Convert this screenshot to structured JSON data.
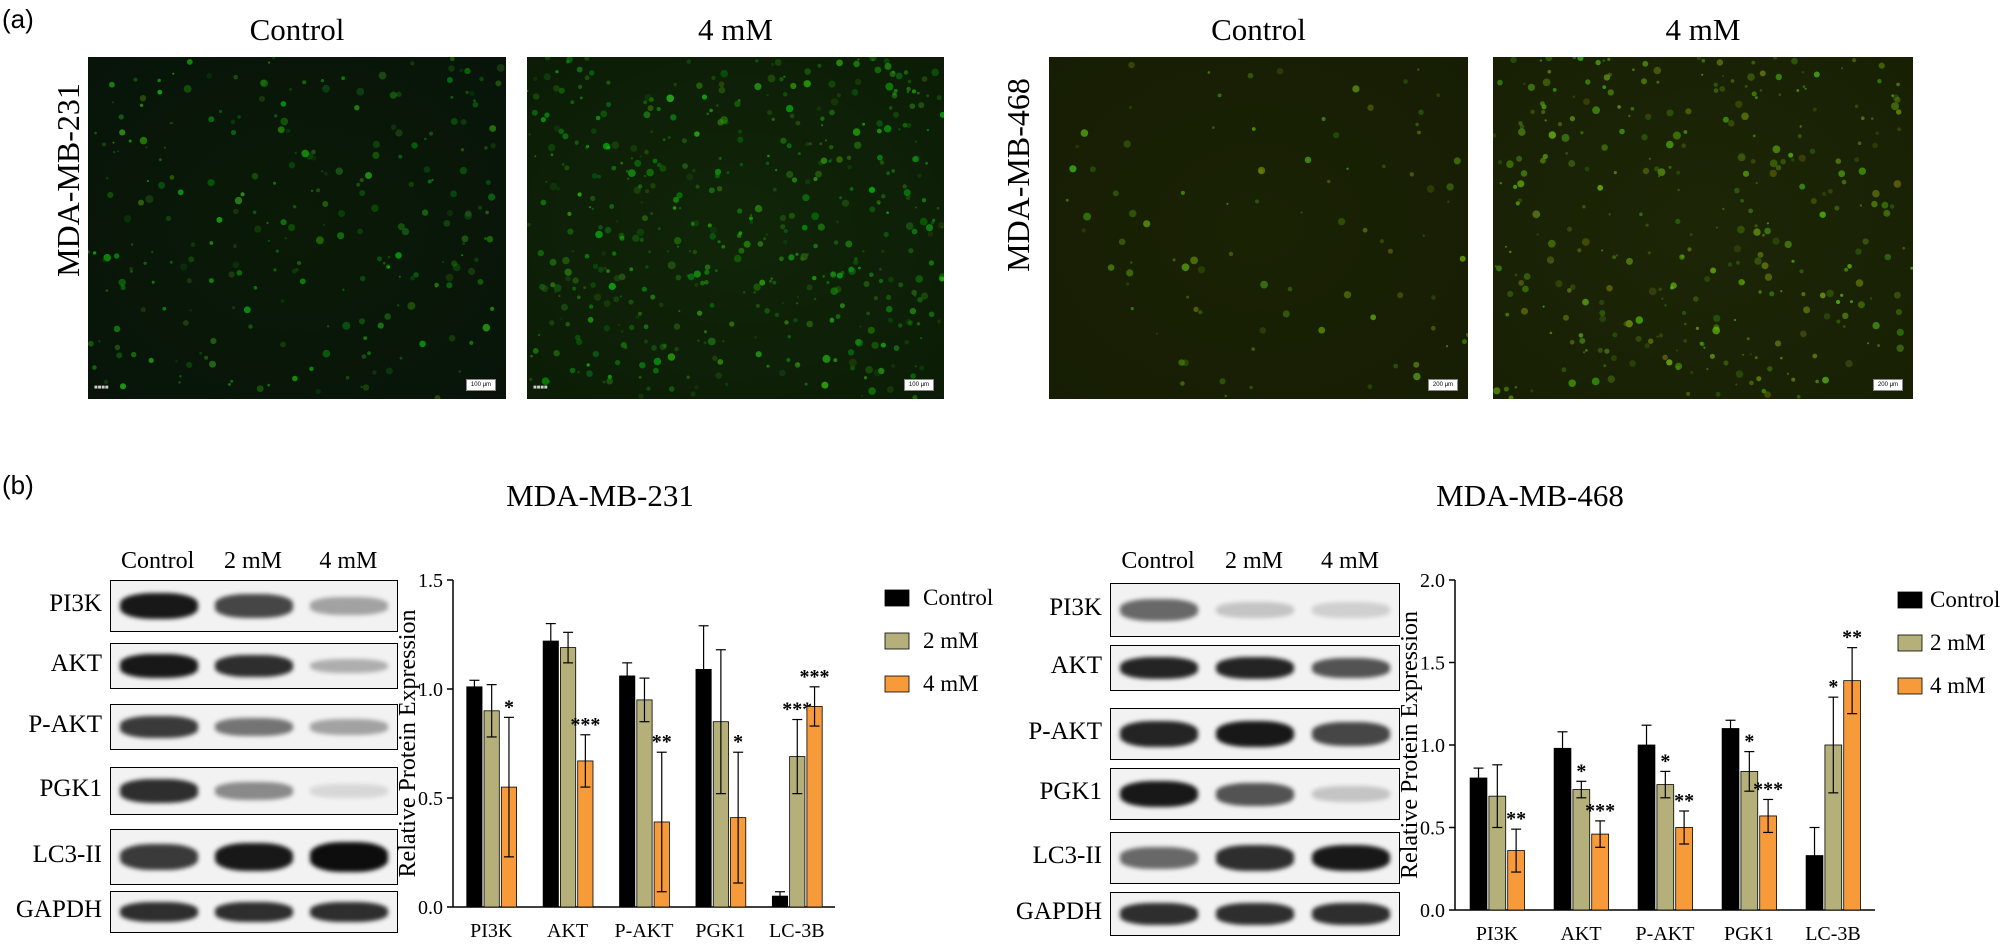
{
  "panel_a": {
    "letter": "(a)",
    "groups": [
      {
        "cell_line": "MDA-MB-231",
        "columns": [
          "Control",
          "4 mM"
        ],
        "scale": "100 μm",
        "tint": [
          [
            "#0a1a06",
            "#08140a"
          ],
          [
            "#102508",
            "#0c1c06"
          ]
        ]
      },
      {
        "cell_line": "MDA-MB-468",
        "columns": [
          "Control",
          "4 mM"
        ],
        "scale": "200 μm",
        "tint": [
          [
            "#1a2204",
            "#161d04"
          ],
          [
            "#1c2606",
            "#182004"
          ]
        ]
      }
    ]
  },
  "panel_b": {
    "letter": "(b)",
    "blots": [
      {
        "title": "MDA-MB-231",
        "lanes": [
          "Control",
          "2 mM",
          "4 mM"
        ],
        "rows": [
          {
            "label": "PI3K",
            "bands": [
              0.95,
              0.75,
              0.35
            ]
          },
          {
            "label": "AKT",
            "bands": [
              0.95,
              0.85,
              0.3
            ]
          },
          {
            "label": "P-AKT",
            "bands": [
              0.8,
              0.55,
              0.35
            ]
          },
          {
            "label": "PGK1",
            "bands": [
              0.85,
              0.45,
              0.12
            ]
          },
          {
            "label": "LC3-II",
            "bands": [
              0.8,
              0.95,
              1.0
            ]
          },
          {
            "label": "GAPDH",
            "bands": [
              0.85,
              0.85,
              0.85
            ]
          }
        ]
      },
      {
        "title": "MDA-MB-468",
        "lanes": [
          "Control",
          "2 mM",
          "4 mM"
        ],
        "rows": [
          {
            "label": "PI3K",
            "bands": [
              0.6,
              0.2,
              0.15
            ]
          },
          {
            "label": "AKT",
            "bands": [
              0.9,
              0.9,
              0.7
            ]
          },
          {
            "label": "P-AKT",
            "bands": [
              0.9,
              0.95,
              0.75
            ]
          },
          {
            "label": "PGK1",
            "bands": [
              0.95,
              0.7,
              0.2
            ]
          },
          {
            "label": "LC3-II",
            "bands": [
              0.6,
              0.85,
              0.95
            ]
          },
          {
            "label": "GAPDH",
            "bands": [
              0.85,
              0.85,
              0.85
            ]
          }
        ]
      }
    ]
  },
  "chart_data": [
    {
      "type": "bar",
      "categories": [
        "PI3K",
        "AKT",
        "P-AKT",
        "PGK1",
        "LC-3B"
      ],
      "ylabel": "Relative Protein Expression",
      "ylim": [
        0,
        1.5
      ],
      "yticks": [
        "0.0",
        "0.5",
        "1.0",
        "1.5"
      ],
      "series": [
        {
          "name": "Control",
          "color": "#000000",
          "values": [
            1.01,
            1.22,
            1.06,
            1.09,
            0.05
          ],
          "errors": [
            0.03,
            0.08,
            0.06,
            0.2,
            0.02
          ],
          "marks": [
            "",
            "",
            "",
            "",
            ""
          ]
        },
        {
          "name": "2 mM",
          "color": "#b5b07a",
          "values": [
            0.9,
            1.19,
            0.95,
            0.85,
            0.69
          ],
          "errors": [
            0.12,
            0.07,
            0.1,
            0.33,
            0.17
          ],
          "marks": [
            "",
            "",
            "",
            "",
            "***"
          ]
        },
        {
          "name": "4 mM",
          "color": "#f79a3a",
          "values": [
            0.55,
            0.67,
            0.39,
            0.41,
            0.92
          ],
          "errors": [
            0.32,
            0.12,
            0.32,
            0.3,
            0.09
          ],
          "marks": [
            "*",
            "***",
            "**",
            "*",
            "***"
          ]
        }
      ],
      "legend": "right"
    },
    {
      "type": "bar",
      "categories": [
        "PI3K",
        "AKT",
        "P-AKT",
        "PGK1",
        "LC-3B"
      ],
      "ylabel": "Relative Protein Expression",
      "ylim": [
        0,
        2.0
      ],
      "yticks": [
        "0.0",
        "0.5",
        "1.0",
        "1.5",
        "2.0"
      ],
      "series": [
        {
          "name": "Control",
          "color": "#000000",
          "values": [
            0.8,
            0.98,
            1.0,
            1.1,
            0.33
          ],
          "errors": [
            0.06,
            0.1,
            0.12,
            0.05,
            0.17
          ],
          "marks": [
            "",
            "",
            "",
            "",
            ""
          ]
        },
        {
          "name": "2 mM",
          "color": "#b5b07a",
          "values": [
            0.69,
            0.73,
            0.76,
            0.84,
            1.0
          ],
          "errors": [
            0.19,
            0.05,
            0.08,
            0.12,
            0.29
          ],
          "marks": [
            "",
            "*",
            "*",
            "*",
            "*"
          ]
        },
        {
          "name": "4 mM",
          "color": "#f79a3a",
          "values": [
            0.36,
            0.46,
            0.5,
            0.57,
            1.39
          ],
          "errors": [
            0.13,
            0.08,
            0.1,
            0.1,
            0.2
          ],
          "marks": [
            "**",
            "***",
            "**",
            "***",
            "**"
          ]
        }
      ],
      "legend": "right"
    }
  ]
}
